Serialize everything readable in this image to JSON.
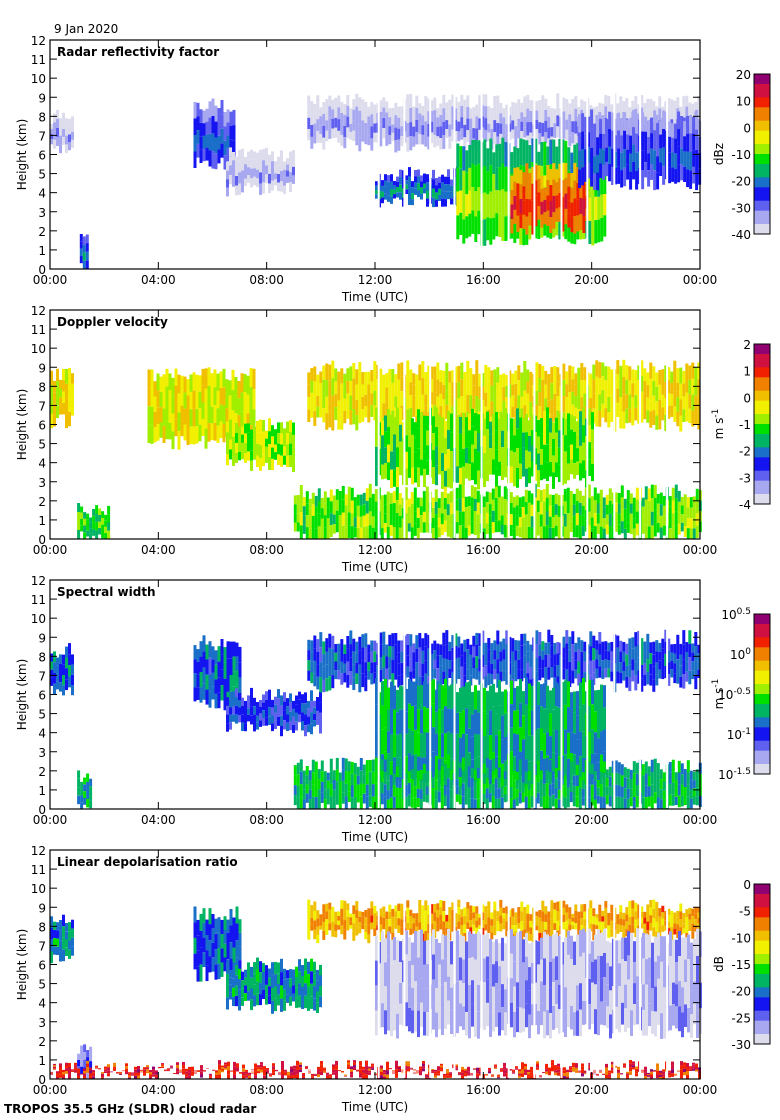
{
  "header": {
    "date": "9 Jan 2020"
  },
  "footer": {
    "instrument": "TROPOS 35.5 GHz (SLDR) cloud radar"
  },
  "colors": {
    "background_missing": "#d8d8d8",
    "colormap": [
      "#dcdcec",
      "#a8a8f0",
      "#6060f0",
      "#1414f0",
      "#1a70c8",
      "#00b464",
      "#00e000",
      "#a0ee00",
      "#f0f000",
      "#f0c000",
      "#f08000",
      "#f02000",
      "#d01040",
      "#900070"
    ]
  },
  "chart_data": [
    {
      "type": "heatmap",
      "title": "Radar reflectivity factor",
      "xlabel": "Time (UTC)",
      "ylabel": "Height (km)",
      "xticks": [
        "00:00",
        "04:00",
        "08:00",
        "12:00",
        "16:00",
        "20:00",
        "00:00"
      ],
      "yticks": [
        "0",
        "1",
        "2",
        "3",
        "4",
        "5",
        "6",
        "7",
        "8",
        "9",
        "10",
        "11",
        "12"
      ],
      "ylim": [
        0,
        12
      ],
      "xlim_hours": [
        0,
        24
      ],
      "colorbar": {
        "label": "dBz",
        "ticks": [
          "20",
          "10",
          "0",
          "-10",
          "-20",
          "-30",
          "-40"
        ],
        "range": [
          -40,
          20
        ]
      },
      "features": [
        {
          "t0": 0.0,
          "t1": 0.8,
          "h0": 6.2,
          "h1": 8.0,
          "v": 0.15
        },
        {
          "t0": 1.1,
          "t1": 1.4,
          "h0": 0.0,
          "h1": 1.6,
          "v": 0.35
        },
        {
          "t0": 5.3,
          "t1": 6.8,
          "h0": 5.5,
          "h1": 8.6,
          "v": 0.3
        },
        {
          "t0": 6.5,
          "t1": 9.0,
          "h0": 4.2,
          "h1": 6.0,
          "v": 0.12
        },
        {
          "t0": 9.5,
          "t1": 24.0,
          "h0": 6.5,
          "h1": 8.8,
          "v": 0.15
        },
        {
          "t0": 12.0,
          "t1": 15.0,
          "h0": 3.6,
          "h1": 5.0,
          "v": 0.38
        },
        {
          "t0": 15.0,
          "t1": 20.5,
          "h0": 1.5,
          "h1": 6.5,
          "v": 0.55
        },
        {
          "t0": 17.0,
          "t1": 19.8,
          "h0": 2.2,
          "h1": 5.2,
          "v": 0.85
        },
        {
          "t0": 19.5,
          "t1": 24.0,
          "h0": 4.5,
          "h1": 8.0,
          "v": 0.3
        }
      ]
    },
    {
      "type": "heatmap",
      "title": "Doppler velocity",
      "xlabel": "Time (UTC)",
      "ylabel": "Height (km)",
      "xticks": [
        "00:00",
        "04:00",
        "08:00",
        "12:00",
        "16:00",
        "20:00",
        "00:00"
      ],
      "yticks": [
        "0",
        "1",
        "2",
        "3",
        "4",
        "5",
        "6",
        "7",
        "8",
        "9",
        "10",
        "11",
        "12"
      ],
      "ylim": [
        0,
        12
      ],
      "xlim_hours": [
        0,
        24
      ],
      "colorbar": {
        "label": "m s-1",
        "label_main": "m s",
        "label_sup": "-1",
        "ticks": [
          "2",
          "1",
          "0",
          "-1",
          "-2",
          "-3",
          "-4"
        ],
        "range": [
          -4,
          2
        ]
      },
      "features": [
        {
          "t0": 0.0,
          "t1": 0.8,
          "h0": 6.2,
          "h1": 8.6,
          "v": 0.62
        },
        {
          "t0": 1.0,
          "t1": 2.2,
          "h0": 0.0,
          "h1": 1.5,
          "v": 0.45
        },
        {
          "t0": 3.6,
          "t1": 7.5,
          "h0": 5.0,
          "h1": 8.6,
          "v": 0.6
        },
        {
          "t0": 6.5,
          "t1": 9.0,
          "h0": 3.8,
          "h1": 6.0,
          "v": 0.55
        },
        {
          "t0": 9.5,
          "t1": 24.0,
          "h0": 6.0,
          "h1": 9.0,
          "v": 0.62
        },
        {
          "t0": 12.0,
          "t1": 20.0,
          "h0": 3.0,
          "h1": 6.5,
          "v": 0.5
        },
        {
          "t0": 9.0,
          "t1": 24.0,
          "h0": 0.0,
          "h1": 2.5,
          "v": 0.5
        }
      ]
    },
    {
      "type": "heatmap",
      "title": "Spectral width",
      "xlabel": "Time (UTC)",
      "ylabel": "Height (km)",
      "xticks": [
        "00:00",
        "04:00",
        "08:00",
        "12:00",
        "16:00",
        "20:00",
        "00:00"
      ],
      "yticks": [
        "0",
        "1",
        "2",
        "3",
        "4",
        "5",
        "6",
        "7",
        "8",
        "9",
        "10",
        "11",
        "12"
      ],
      "ylim": [
        0,
        12
      ],
      "xlim_hours": [
        0,
        24
      ],
      "colorbar": {
        "label": "m s-1",
        "label_main": "m s",
        "label_sup": "-1",
        "ticks": [
          "10^0.5",
          "10^0",
          "10^-0.5",
          "10^-1",
          "10^-1.5"
        ],
        "tick_base": [
          "10",
          "10",
          "10",
          "10",
          "10"
        ],
        "tick_exp": [
          "0.5",
          "0",
          "-0.5",
          "-1",
          "-1.5"
        ],
        "range": [
          -1.5,
          0.5
        ]
      },
      "features": [
        {
          "t0": 0.0,
          "t1": 0.8,
          "h0": 6.2,
          "h1": 8.3,
          "v": 0.3
        },
        {
          "t0": 1.0,
          "t1": 1.5,
          "h0": 0.0,
          "h1": 1.8,
          "v": 0.4
        },
        {
          "t0": 5.3,
          "t1": 7.0,
          "h0": 5.5,
          "h1": 8.7,
          "v": 0.3
        },
        {
          "t0": 6.5,
          "t1": 10.0,
          "h0": 4.2,
          "h1": 6.0,
          "v": 0.25
        },
        {
          "t0": 9.5,
          "t1": 24.0,
          "h0": 6.5,
          "h1": 9.0,
          "v": 0.28
        },
        {
          "t0": 12.0,
          "t1": 20.5,
          "h0": 1.5,
          "h1": 6.5,
          "v": 0.38
        },
        {
          "t0": 9.0,
          "t1": 24.0,
          "h0": 0.0,
          "h1": 2.3,
          "v": 0.4
        }
      ]
    },
    {
      "type": "heatmap",
      "title": "Linear depolarisation ratio",
      "xlabel": "Time (UTC)",
      "ylabel": "Height (km)",
      "xticks": [
        "00:00",
        "04:00",
        "08:00",
        "12:00",
        "16:00",
        "20:00",
        "00:00"
      ],
      "yticks": [
        "0",
        "1",
        "2",
        "3",
        "4",
        "5",
        "6",
        "7",
        "8",
        "9",
        "10",
        "11",
        "12"
      ],
      "ylim": [
        0,
        12
      ],
      "xlim_hours": [
        0,
        24
      ],
      "colorbar": {
        "label": "dB",
        "ticks": [
          "0",
          "-5",
          "-10",
          "-15",
          "-20",
          "-25",
          "-30"
        ],
        "range": [
          -30,
          0
        ]
      },
      "features": [
        {
          "t0": 0.0,
          "t1": 0.8,
          "h0": 6.2,
          "h1": 8.3,
          "v": 0.35
        },
        {
          "t0": 1.0,
          "t1": 1.5,
          "h0": 0.0,
          "h1": 1.7,
          "v": 0.2
        },
        {
          "t0": 5.3,
          "t1": 7.0,
          "h0": 5.5,
          "h1": 8.7,
          "v": 0.3
        },
        {
          "t0": 6.5,
          "t1": 10.0,
          "h0": 3.8,
          "h1": 6.0,
          "v": 0.35
        },
        {
          "t0": 9.5,
          "t1": 24.0,
          "h0": 7.5,
          "h1": 9.0,
          "v": 0.7
        },
        {
          "t0": 12.0,
          "t1": 24.0,
          "h0": 2.5,
          "h1": 7.5,
          "v": 0.08
        },
        {
          "t0": 0.0,
          "t1": 24.0,
          "h0": 0.2,
          "h1": 0.6,
          "v": 0.85
        }
      ]
    }
  ]
}
